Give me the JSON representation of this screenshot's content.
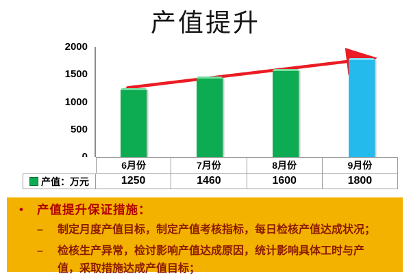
{
  "title": "产值提升",
  "chart_data": {
    "type": "bar",
    "title": "产值提升",
    "series_label": "产值：万元",
    "categories": [
      "6月份",
      "7月份",
      "8月份",
      "9月份"
    ],
    "values": [
      1250,
      1460,
      1600,
      1800
    ],
    "xlabel": "",
    "ylabel": "",
    "ylim": [
      0,
      2000
    ],
    "yticks": [
      2000,
      1500,
      1000,
      500,
      0
    ],
    "grid": false,
    "legend_position": "table-left",
    "bar_colors": [
      "#0EAC52",
      "#0EAC52",
      "#0EAC52",
      "#24BBEC"
    ],
    "bar_cap_colors": [
      "#77DCA2",
      "#77DCA2",
      "#77DCA2",
      "#80DDF8"
    ],
    "trend_arrow": {
      "from": "6月份",
      "to": "9月份",
      "color": "#EA1C24"
    }
  },
  "measures": {
    "bullet": "•",
    "dash": "–",
    "heading": "产值提升保证措施：",
    "items": [
      "制定月度产值目标，制定产值考核指标，每日检核产值达成状况；",
      "检核生产异常，检讨影响产值达成原因，统计影响具体工时与产值，采取措施达成产值目标；"
    ]
  },
  "colors": {
    "panel_bg": "#F3B200",
    "heading_text": "#B00000",
    "body_text": "#8B1A00",
    "axis_line": "#8C8C8C",
    "table_border": "#9C9C9C",
    "arrow": "#EA1C24"
  }
}
